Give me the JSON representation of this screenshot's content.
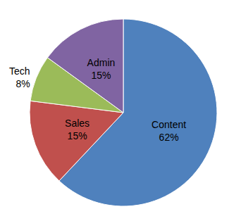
{
  "chart_data": {
    "type": "pie",
    "categories": [
      "Content",
      "Sales",
      "Tech",
      "Admin"
    ],
    "values": [
      62,
      15,
      8,
      15
    ],
    "value_labels": [
      "62%",
      "15%",
      "8%",
      "15%"
    ],
    "colors": [
      "#4f81bd",
      "#c0504d",
      "#9bbb59",
      "#8064a2"
    ],
    "data_labels": true
  }
}
